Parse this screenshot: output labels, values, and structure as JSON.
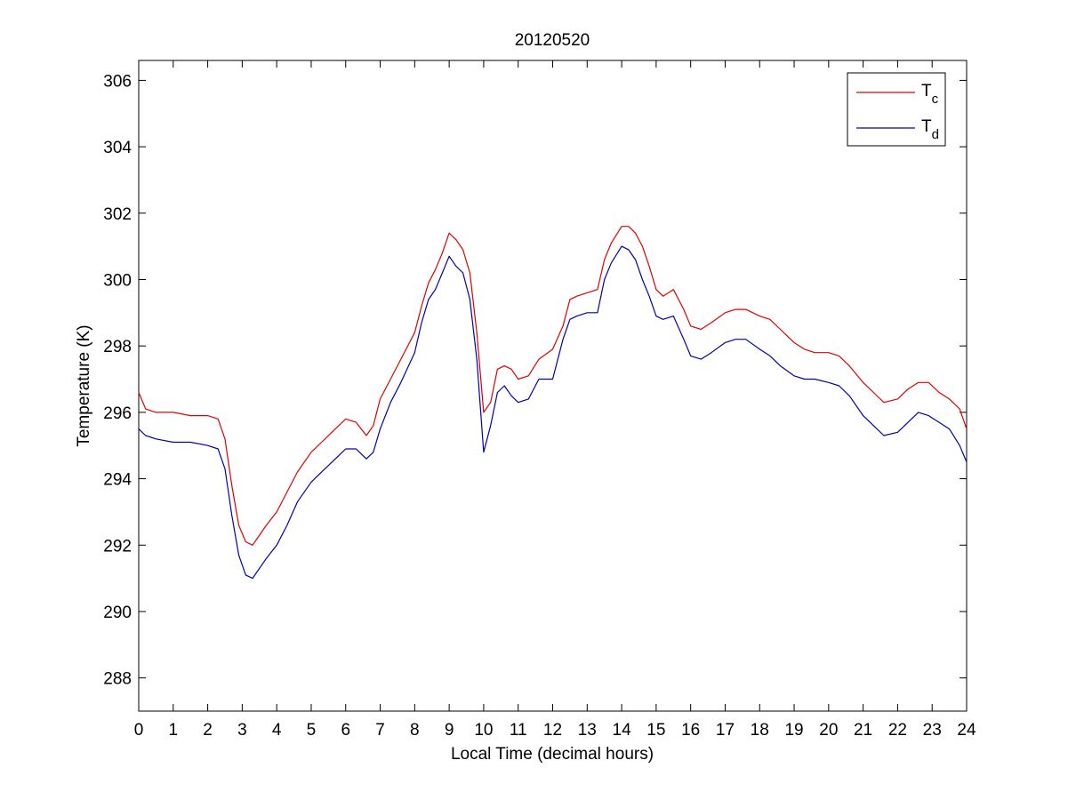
{
  "chart_data": {
    "type": "line",
    "title": "20120520",
    "xlabel": "Local Time (decimal hours)",
    "ylabel": "Temperature (K)",
    "xlim": [
      0,
      24
    ],
    "ylim": [
      287,
      306.6
    ],
    "x_ticks": [
      0,
      1,
      2,
      3,
      4,
      5,
      6,
      7,
      8,
      9,
      10,
      11,
      12,
      13,
      14,
      15,
      16,
      17,
      18,
      19,
      20,
      21,
      22,
      23,
      24
    ],
    "y_ticks": [
      288,
      290,
      292,
      294,
      296,
      298,
      300,
      302,
      304,
      306
    ],
    "grid": false,
    "legend_position": "top-right",
    "colors": {
      "Tc": "#e00000",
      "Td": "#0000b0",
      "axis": "#000000"
    },
    "series": [
      {
        "id": "Tc",
        "name": "T",
        "subscript": "c",
        "x": [
          0,
          0.2,
          0.5,
          1,
          1.5,
          2,
          2.3,
          2.5,
          2.7,
          2.9,
          3.1,
          3.3,
          3.5,
          3.7,
          4,
          4.3,
          4.6,
          5,
          5.3,
          5.6,
          6,
          6.3,
          6.6,
          6.8,
          7,
          7.3,
          7.6,
          8,
          8.2,
          8.4,
          8.6,
          8.8,
          9,
          9.2,
          9.4,
          9.6,
          9.8,
          10,
          10.2,
          10.4,
          10.6,
          10.8,
          11,
          11.3,
          11.6,
          12,
          12.3,
          12.5,
          12.7,
          13,
          13.3,
          13.5,
          13.7,
          14,
          14.2,
          14.4,
          14.6,
          14.8,
          15,
          15.2,
          15.5,
          15.8,
          16,
          16.3,
          16.6,
          17,
          17.3,
          17.6,
          18,
          18.3,
          18.6,
          19,
          19.3,
          19.6,
          20,
          20.3,
          20.6,
          21,
          21.3,
          21.6,
          22,
          22.3,
          22.6,
          22.9,
          23.2,
          23.5,
          23.8,
          24
        ],
        "values": [
          296.6,
          296.1,
          296.0,
          296.0,
          295.9,
          295.9,
          295.8,
          295.2,
          293.8,
          292.6,
          292.1,
          292.0,
          292.3,
          292.6,
          293.0,
          293.6,
          294.2,
          294.8,
          295.1,
          295.4,
          295.8,
          295.7,
          295.3,
          295.6,
          296.4,
          297.0,
          297.6,
          298.4,
          299.2,
          299.9,
          300.3,
          300.8,
          301.4,
          301.2,
          300.9,
          300.2,
          298.4,
          296.0,
          296.3,
          297.3,
          297.4,
          297.3,
          297.0,
          297.1,
          297.6,
          297.9,
          298.6,
          299.4,
          299.5,
          299.6,
          299.7,
          300.6,
          301.1,
          301.6,
          301.6,
          301.4,
          301.0,
          300.4,
          299.7,
          299.5,
          299.7,
          299.1,
          298.6,
          298.5,
          298.7,
          299.0,
          299.1,
          299.1,
          298.9,
          298.8,
          298.5,
          298.1,
          297.9,
          297.8,
          297.8,
          297.7,
          297.4,
          296.9,
          296.6,
          296.3,
          296.4,
          296.7,
          296.9,
          296.9,
          296.6,
          296.4,
          296.1,
          295.5
        ]
      },
      {
        "id": "Td",
        "name": "T",
        "subscript": "d",
        "x": [
          0,
          0.2,
          0.5,
          1,
          1.5,
          2,
          2.3,
          2.5,
          2.7,
          2.9,
          3.1,
          3.3,
          3.5,
          3.7,
          4,
          4.3,
          4.6,
          5,
          5.3,
          5.6,
          6,
          6.3,
          6.6,
          6.8,
          7,
          7.3,
          7.6,
          8,
          8.2,
          8.4,
          8.6,
          8.8,
          9,
          9.2,
          9.4,
          9.6,
          9.8,
          10,
          10.2,
          10.4,
          10.6,
          10.8,
          11,
          11.3,
          11.6,
          12,
          12.3,
          12.5,
          12.7,
          13,
          13.3,
          13.5,
          13.7,
          14,
          14.2,
          14.4,
          14.6,
          14.8,
          15,
          15.2,
          15.5,
          15.8,
          16,
          16.3,
          16.6,
          17,
          17.3,
          17.6,
          18,
          18.3,
          18.6,
          19,
          19.3,
          19.6,
          20,
          20.3,
          20.6,
          21,
          21.3,
          21.6,
          22,
          22.3,
          22.6,
          22.9,
          23.2,
          23.5,
          23.8,
          24
        ],
        "values": [
          295.5,
          295.3,
          295.2,
          295.1,
          295.1,
          295.0,
          294.9,
          294.3,
          292.9,
          291.7,
          291.1,
          291.0,
          291.3,
          291.6,
          292.0,
          292.6,
          293.3,
          293.9,
          294.2,
          294.5,
          294.9,
          294.9,
          294.6,
          294.8,
          295.5,
          296.3,
          296.9,
          297.8,
          298.7,
          299.4,
          299.7,
          300.2,
          300.7,
          300.4,
          300.2,
          299.4,
          297.6,
          294.8,
          295.6,
          296.6,
          296.8,
          296.5,
          296.3,
          296.4,
          297.0,
          297.0,
          298.2,
          298.8,
          298.9,
          299.0,
          299.0,
          300.0,
          300.5,
          301.0,
          300.9,
          300.6,
          300.0,
          299.5,
          298.9,
          298.8,
          298.9,
          298.2,
          297.7,
          297.6,
          297.8,
          298.1,
          298.2,
          298.2,
          297.9,
          297.7,
          297.4,
          297.1,
          297.0,
          297.0,
          296.9,
          296.8,
          296.5,
          295.9,
          295.6,
          295.3,
          295.4,
          295.7,
          296.0,
          295.9,
          295.7,
          295.5,
          295.0,
          294.5
        ]
      }
    ]
  }
}
